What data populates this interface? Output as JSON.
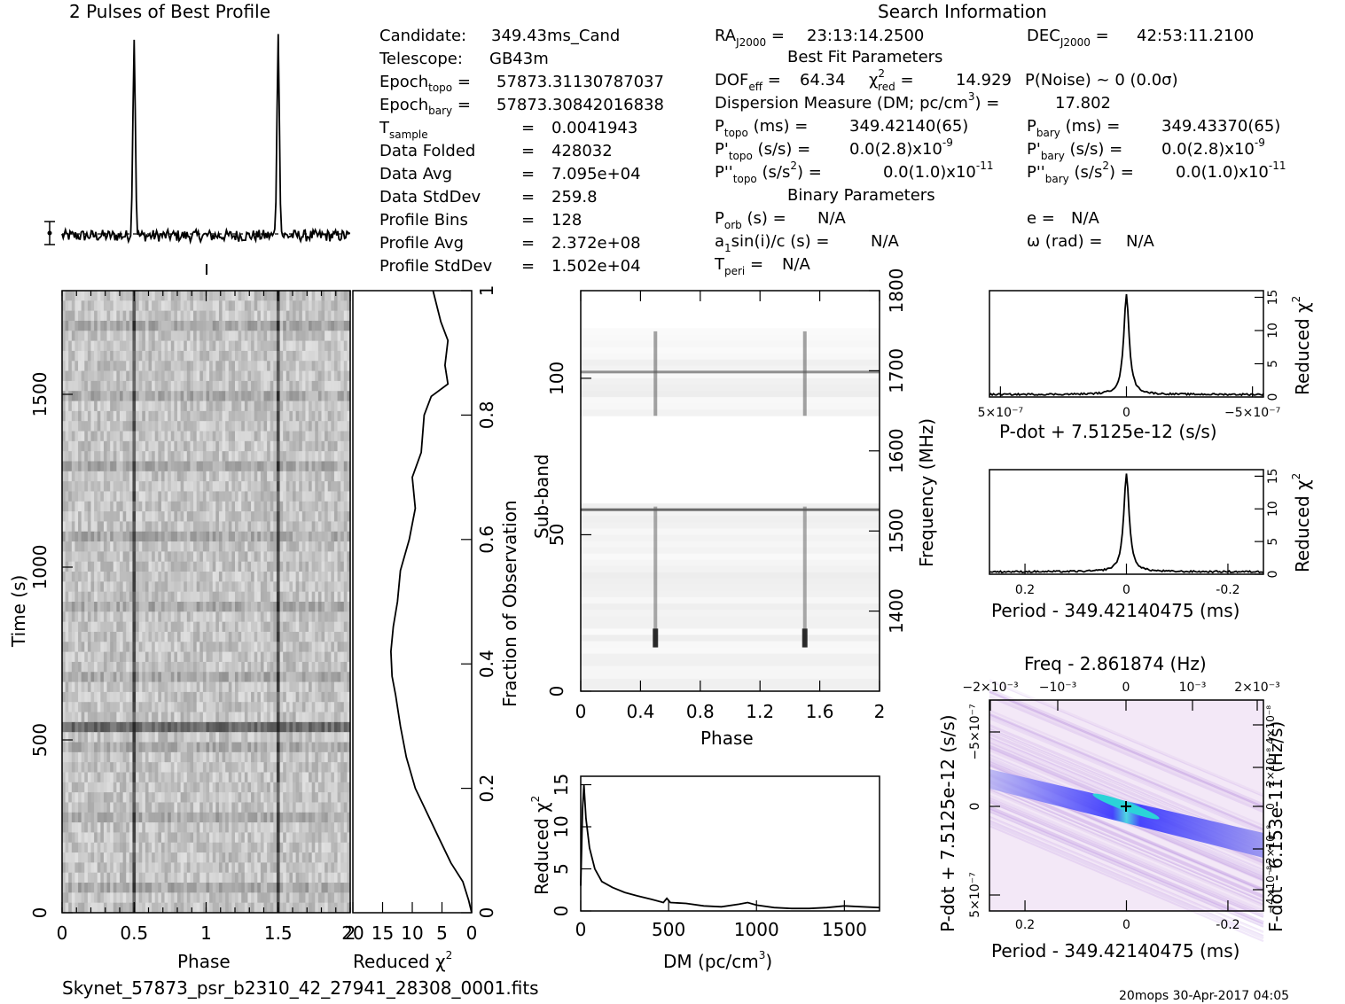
{
  "headings": {
    "profile": "2 Pulses of Best Profile",
    "search_info": "Search Information",
    "best_fit": "Best Fit Parameters",
    "binary": "Binary Parameters"
  },
  "candidate_info": {
    "candidate": "349.43ms_Cand",
    "telescope": "GB43m",
    "epoch_topo": "57873.31130787037",
    "epoch_bary": "57873.30842016838",
    "t_sample": "0.0041943",
    "data_folded": "428032",
    "data_avg": "7.095e+04",
    "data_stddev": "259.8",
    "profile_bins": "128",
    "profile_avg": "2.372e+08",
    "profile_stddev": "1.502e+04"
  },
  "search_info": {
    "ra": "23:13:14.2500",
    "dec": "42:53:11.2100",
    "dof_eff": "64.34",
    "chi2_red": "14.929",
    "p_noise": "P(Noise) ~ 0   (0.0σ)",
    "dm": "17.802",
    "p_topo": "349.42140(65)",
    "p_bary": "349.43370(65)",
    "pdot_topo": "0.0(2.8)x10",
    "pdot_bary": "0.0(2.8)x10",
    "pdot_exp": "-9",
    "pddot_topo": "0.0(1.0)x10",
    "pddot_bary": "0.0(1.0)x10",
    "pddot_exp": "-11",
    "p_orb": "N/A",
    "a1sini": "N/A",
    "t_peri": "N/A",
    "e": "N/A",
    "omega": "N/A"
  },
  "labels": {
    "phase": "Phase",
    "time": "Time (s)",
    "reduced_chi2": "Reduced χ",
    "fraction_obs": "Fraction of Observation",
    "sub_band": "Sub-band",
    "frequency": "Frequency (MHz)",
    "dm_axis": "DM (pc/cm",
    "pdot_axis": "P-dot + 7.5125e-12 (s/s)",
    "period_axis": "Period - 349.42140475 (ms)",
    "freq_axis": "Freq - 2.861874 (Hz)",
    "fdot_axis": "F-dot - 6.153e-11 (Hz/s)",
    "filename": "Skynet_57873_psr_b2310_42_27941_28308_0001.fits",
    "footer_right": "20mops 30-Apr-2017 04:05"
  },
  "colors": {
    "ink": "#000000",
    "grid": "#9a9a9a",
    "heat_low": "#f2e6f7",
    "heat_high": "#1a1aff",
    "heat_peak": "#40e0d0"
  },
  "chart_data": [
    {
      "id": "profile",
      "type": "line",
      "title": "2 Pulses of Best Profile",
      "xlim": [
        0,
        2
      ],
      "pulse_phase": [
        0.5,
        1.5
      ],
      "baseline": 0.0,
      "peak": 1.0,
      "noise_sigma": 0.03
    },
    {
      "id": "time-phase",
      "type": "heatmap",
      "xlabel": "Phase",
      "ylabel": "Time (s)",
      "xlim": [
        0,
        2
      ],
      "ylim": [
        0,
        1800
      ],
      "xticks": [
        0,
        0.5,
        1,
        1.5,
        2
      ],
      "yticks": [
        0,
        500,
        1000,
        1500
      ],
      "pulse_phase": [
        0.5,
        1.5
      ]
    },
    {
      "id": "chi2-vs-time",
      "type": "line",
      "xlabel": "Reduced χ2",
      "ylabel": "Fraction of Observation",
      "xlim": [
        20,
        0
      ],
      "ylim": [
        0,
        1
      ],
      "xticks": [
        20,
        15,
        10,
        5,
        0
      ],
      "yticks": [
        0,
        0.2,
        0.4,
        0.6,
        0.8,
        1
      ],
      "points": [
        [
          0.0,
          0.0
        ],
        [
          0.02,
          0.5
        ],
        [
          0.05,
          1.5
        ],
        [
          0.08,
          3.5
        ],
        [
          0.12,
          5.5
        ],
        [
          0.16,
          7.5
        ],
        [
          0.2,
          9.5
        ],
        [
          0.25,
          11.0
        ],
        [
          0.3,
          12.0
        ],
        [
          0.35,
          12.8
        ],
        [
          0.38,
          13.4
        ],
        [
          0.42,
          13.6
        ],
        [
          0.46,
          13.2
        ],
        [
          0.5,
          12.5
        ],
        [
          0.55,
          12.0
        ],
        [
          0.6,
          10.5
        ],
        [
          0.65,
          9.5
        ],
        [
          0.7,
          10.0
        ],
        [
          0.74,
          8.5
        ],
        [
          0.8,
          8.0
        ],
        [
          0.83,
          6.8
        ],
        [
          0.85,
          4.0
        ],
        [
          0.88,
          4.5
        ],
        [
          0.92,
          4.0
        ],
        [
          0.95,
          5.2
        ],
        [
          1.0,
          6.5
        ]
      ]
    },
    {
      "id": "subband-phase",
      "type": "heatmap",
      "xlabel": "Phase",
      "ylabel": "Sub-band",
      "y2label": "Frequency (MHz)",
      "xlim": [
        0,
        2
      ],
      "ylim": [
        0,
        128
      ],
      "y2lim": [
        1300,
        1800
      ],
      "xticks": [
        0,
        0.4,
        0.8,
        1.2,
        1.6,
        2
      ],
      "yticks": [
        0,
        50,
        100
      ],
      "y2ticks": [
        1400,
        1500,
        1600,
        1700,
        1800
      ],
      "pulse_phase": [
        0.5,
        1.5
      ]
    },
    {
      "id": "chi2-vs-dm",
      "type": "line",
      "xlabel": "DM (pc/cm3)",
      "ylabel": "Reduced χ2",
      "xlim": [
        0,
        1700
      ],
      "ylim": [
        0,
        16
      ],
      "xticks": [
        0,
        500,
        1000,
        1500
      ],
      "yticks": [
        0,
        5,
        10,
        15
      ],
      "points": [
        [
          0,
          3.0
        ],
        [
          10,
          12.0
        ],
        [
          18,
          15.0
        ],
        [
          30,
          11.0
        ],
        [
          50,
          7.5
        ],
        [
          80,
          5.0
        ],
        [
          120,
          3.5
        ],
        [
          180,
          2.8
        ],
        [
          250,
          2.2
        ],
        [
          320,
          1.8
        ],
        [
          400,
          1.4
        ],
        [
          470,
          1.0
        ],
        [
          490,
          1.5
        ],
        [
          510,
          1.0
        ],
        [
          600,
          0.9
        ],
        [
          700,
          0.6
        ],
        [
          800,
          0.5
        ],
        [
          900,
          0.8
        ],
        [
          950,
          1.0
        ],
        [
          1000,
          0.7
        ],
        [
          1100,
          0.4
        ],
        [
          1200,
          0.3
        ],
        [
          1300,
          0.3
        ],
        [
          1400,
          0.4
        ],
        [
          1500,
          0.6
        ],
        [
          1600,
          0.5
        ],
        [
          1700,
          0.4
        ]
      ]
    },
    {
      "id": "chi2-vs-pdot",
      "type": "line",
      "xlabel": "P-dot + 7.5125e-12 (s/s)",
      "ylabel": "Reduced χ2",
      "xlim": [
        6e-07,
        -6e-07
      ],
      "ylim": [
        0,
        16
      ],
      "xticks": [
        "5x10-7",
        "0",
        "-5x10-7"
      ],
      "yticks": [
        0,
        5,
        10,
        15
      ],
      "peak_x": 0,
      "peak_y": 15
    },
    {
      "id": "chi2-vs-period",
      "type": "line",
      "xlabel": "Period - 349.42140475 (ms)",
      "ylabel": "Reduced χ2",
      "xlim": [
        0.27,
        -0.27
      ],
      "ylim": [
        0,
        16
      ],
      "xticks": [
        0.2,
        0,
        -0.2
      ],
      "yticks": [
        0,
        5,
        10,
        15
      ],
      "peak_x": 0,
      "peak_y": 15
    },
    {
      "id": "p-pdot-plane",
      "type": "heatmap",
      "xlabel": "Period - 349.42140475 (ms)",
      "ylabel": "P-dot + 7.5125e-12 (s/s)",
      "x2label": "Freq - 2.861874 (Hz)",
      "y2label": "F-dot - 6.153e-11 (Hz/s)",
      "xlim": [
        0.27,
        -0.27
      ],
      "ylim": [
        -6e-07,
        6e-07
      ],
      "xticks": [
        0.2,
        0,
        -0.2
      ],
      "x2ticks": [
        "-2x10-3",
        "-10-3",
        "0",
        "10-3",
        "2x10-3"
      ],
      "yticks": [
        "-5x10-7",
        "0",
        "5x10-7"
      ],
      "y2ticks": [
        "4x10-8",
        "2x10-8",
        "0",
        "-2x10-8",
        "-4x10-8"
      ],
      "best": [
        0,
        0
      ]
    }
  ]
}
